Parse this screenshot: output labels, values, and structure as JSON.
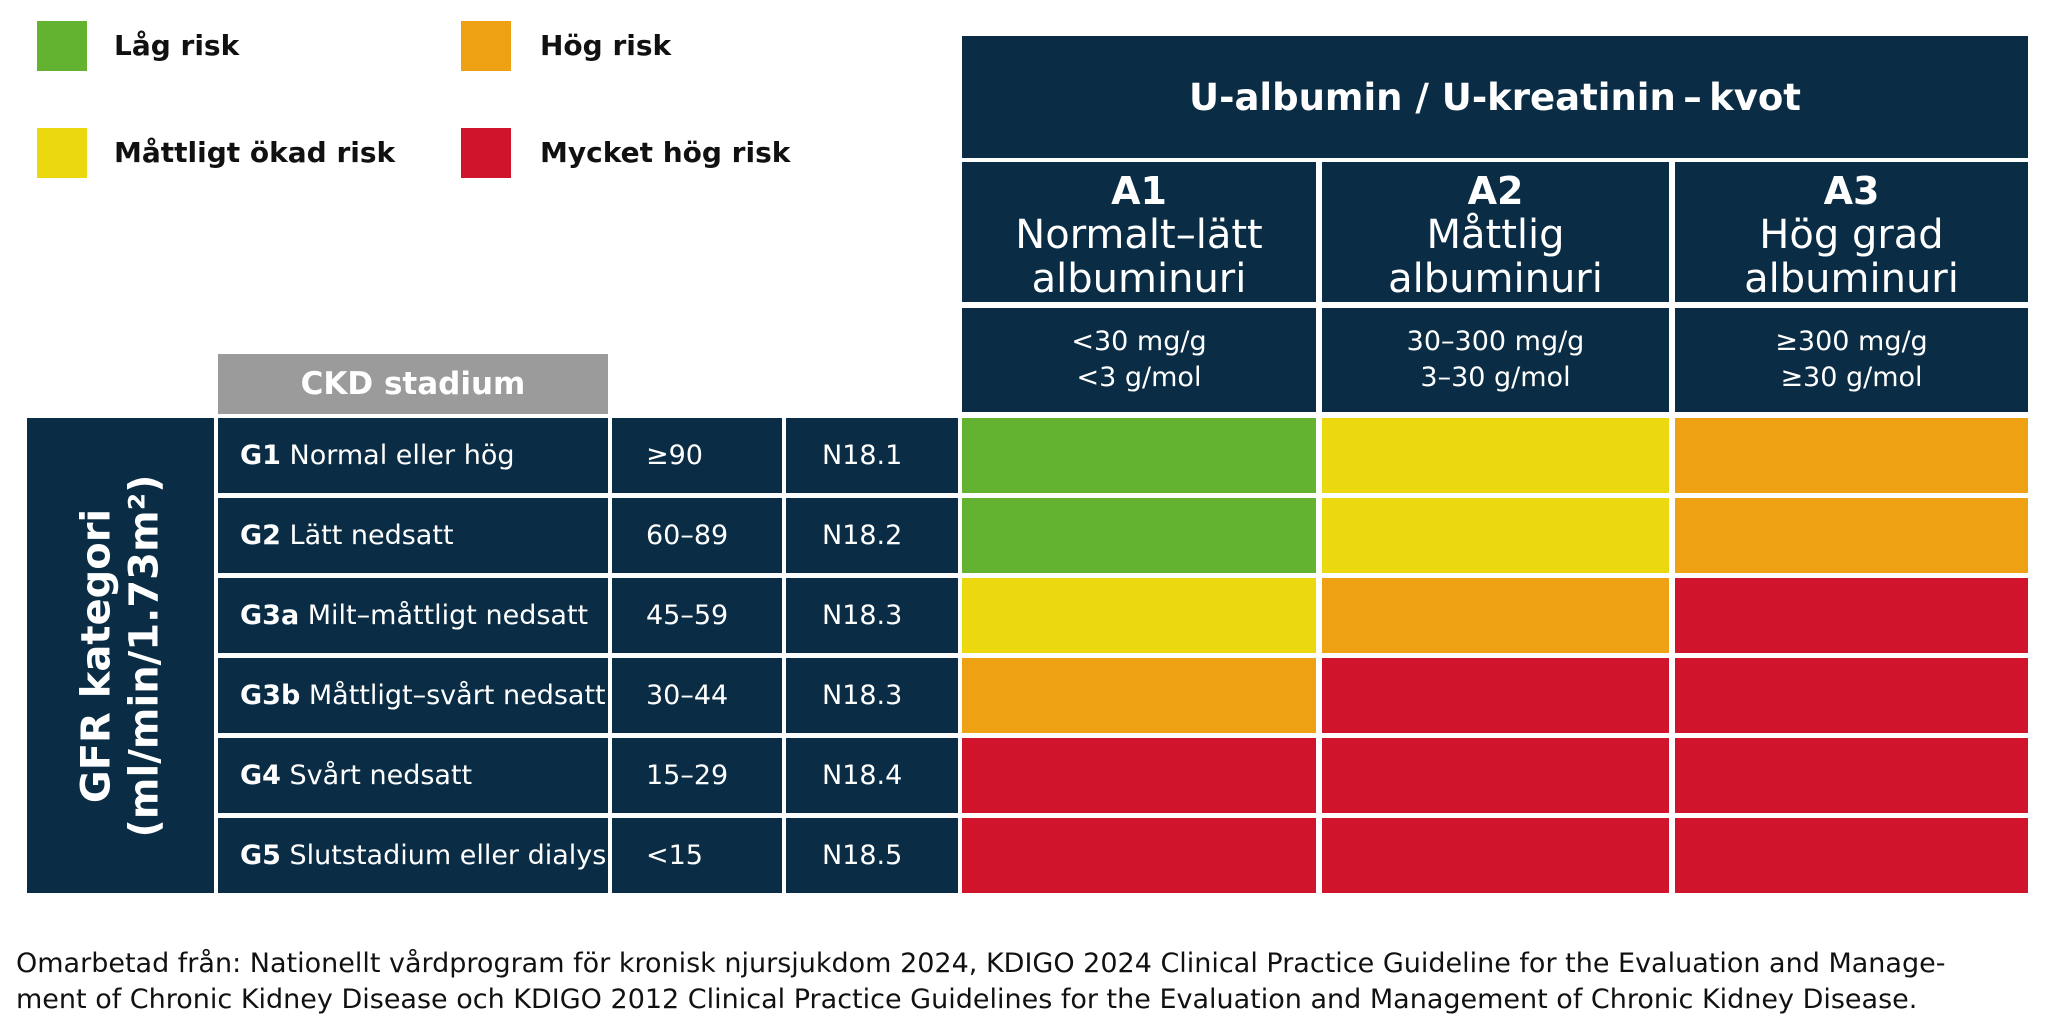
{
  "legend": [
    {
      "label": "Låg risk",
      "color": "#63b331"
    },
    {
      "label": "Hög risk",
      "color": "#eda113"
    },
    {
      "label": "Måttligt ökad risk",
      "color": "#ecd80f"
    },
    {
      "label": "Mycket hög risk",
      "color": "#d0142c"
    }
  ],
  "header": {
    "title": "U-albumin / U-kreatinin – kvot",
    "ckd_stage_label": "CKD stadium",
    "gfr_label_line1": "GFR kategori",
    "gfr_label_line2": "(ml/min/1.73m²)"
  },
  "columns": [
    {
      "code": "A1",
      "desc1": "Normalt–lätt",
      "desc2": "albuminuri",
      "thr1": "<30 mg/g",
      "thr2": "<3 g/mol"
    },
    {
      "code": "A2",
      "desc1": "Måttlig",
      "desc2": "albuminuri",
      "thr1": "30–300 mg/g",
      "thr2": "3–30 g/mol"
    },
    {
      "code": "A3",
      "desc1": "Hög grad",
      "desc2": "albuminuri",
      "thr1": "≥300 mg/g",
      "thr2": "≥30 g/mol"
    }
  ],
  "rows": [
    {
      "code": "G1",
      "desc": " Normal eller hög",
      "gfr": "≥90",
      "icd": "N18.1",
      "risk": [
        "low",
        "moderate",
        "high"
      ]
    },
    {
      "code": "G2",
      "desc": " Lätt nedsatt",
      "gfr": "60–89",
      "icd": "N18.2",
      "risk": [
        "low",
        "moderate",
        "high"
      ]
    },
    {
      "code": "G3a",
      "desc": " Milt–måttligt nedsatt",
      "gfr": "45–59",
      "icd": "N18.3",
      "risk": [
        "moderate",
        "high",
        "very_high"
      ]
    },
    {
      "code": "G3b",
      "desc": " Måttligt–svårt nedsatt",
      "gfr": "30–44",
      "icd": "N18.3",
      "risk": [
        "high",
        "very_high",
        "very_high"
      ]
    },
    {
      "code": "G4",
      "desc": " Svårt nedsatt",
      "gfr": "15–29",
      "icd": "N18.4",
      "risk": [
        "very_high",
        "very_high",
        "very_high"
      ]
    },
    {
      "code": "G5",
      "desc": " Slutstadium eller dialys",
      "gfr": "<15",
      "icd": "N18.5",
      "risk": [
        "very_high",
        "very_high",
        "very_high"
      ]
    }
  ],
  "risk_colors": {
    "low": "#63b331",
    "moderate": "#ecd80f",
    "high": "#eda113",
    "very_high": "#d0142c"
  },
  "colors": {
    "navy": "#0a2d45",
    "stage_gray": "#9b9b9b"
  },
  "footer": {
    "line1": "Omarbetad från: Nationellt vårdprogram för kronisk njursjukdom 2024, KDIGO 2024 Clinical Practice Guideline for the Evaluation and Manage-",
    "line2": "ment of Chronic Kidney Disease och KDIGO 2012 Clinical Practice Guidelines for the Evaluation and Management of Chronic Kidney Disease."
  }
}
